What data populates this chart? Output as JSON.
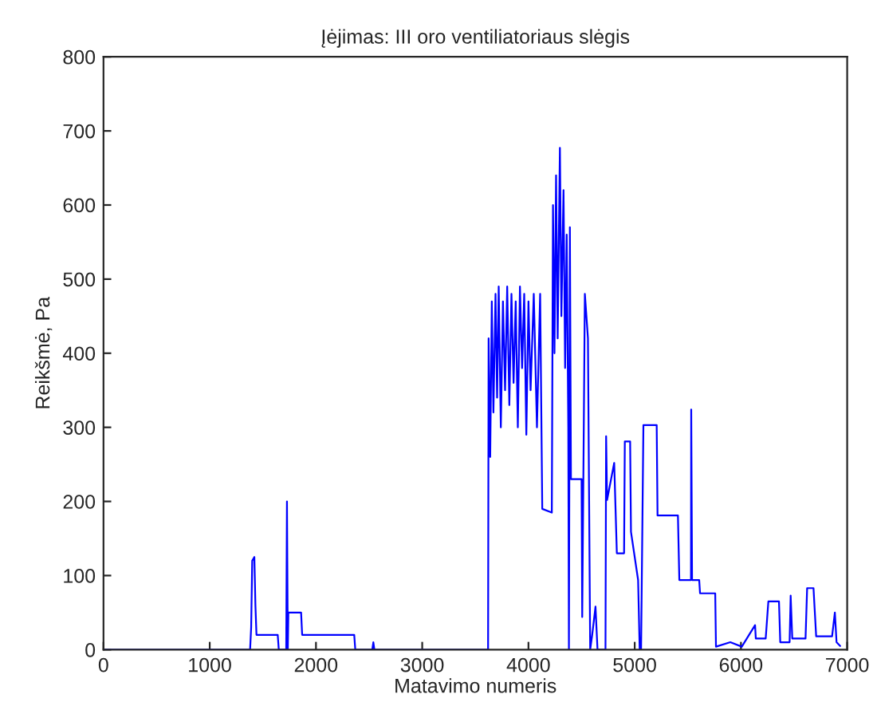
{
  "chart_data": {
    "type": "line",
    "title": "Įėjimas: III oro ventiliatoriaus slėgis",
    "xlabel": "Matavimo numeris",
    "ylabel": "Reikšmė, Pa",
    "xlim": [
      0,
      7000
    ],
    "xticks": [
      0,
      1000,
      2000,
      3000,
      4000,
      5000,
      6000,
      7000
    ],
    "ylim": [
      0,
      800
    ],
    "yticks": [
      0,
      100,
      200,
      300,
      400,
      500,
      600,
      700,
      800
    ],
    "grid": false,
    "legend": false,
    "marker": "none",
    "line_style": "solid",
    "series": [
      {
        "color": "#0000ff",
        "x": [
          0,
          1380,
          1390,
          1400,
          1420,
          1430,
          1440,
          1640,
          1650,
          1720,
          1727,
          1735,
          1740,
          1860,
          1870,
          2360,
          2370,
          2530,
          2540,
          2550,
          3615,
          3620,
          3625,
          3640,
          3655,
          3670,
          3690,
          3705,
          3720,
          3740,
          3760,
          3780,
          3800,
          3820,
          3840,
          3860,
          3880,
          3900,
          3920,
          3940,
          3960,
          3980,
          4000,
          4020,
          4050,
          4080,
          4110,
          4130,
          4220,
          4231,
          4245,
          4260,
          4275,
          4296,
          4310,
          4330,
          4345,
          4360,
          4375,
          4381,
          4390,
          4400,
          4406,
          4500,
          4506,
          4531,
          4560,
          4581,
          4600,
          4631,
          4650,
          4725,
          4731,
          4740,
          4807,
          4832,
          4900,
          4907,
          4957,
          4965,
          5032,
          5047,
          5060,
          5082,
          5207,
          5215,
          5407,
          5420,
          5530,
          5532,
          5540,
          5607,
          5615,
          5758,
          5765,
          5900,
          6008,
          6133,
          6140,
          6233,
          6258,
          6358,
          6370,
          6458,
          6468,
          6483,
          6608,
          6623,
          6683,
          6708,
          6858,
          6884,
          6900,
          6934
        ],
        "values": [
          0,
          0,
          30,
          120,
          125,
          60,
          20,
          20,
          0,
          0,
          200,
          0,
          50,
          50,
          20,
          20,
          0,
          0,
          10,
          0,
          0,
          0,
          420,
          260,
          470,
          320,
          480,
          340,
          490,
          300,
          470,
          350,
          490,
          330,
          480,
          360,
          470,
          300,
          490,
          380,
          480,
          290,
          470,
          350,
          480,
          300,
          480,
          190,
          185,
          600,
          400,
          640,
          420,
          677,
          450,
          620,
          380,
          560,
          300,
          0,
          570,
          230,
          230,
          230,
          44,
          480,
          420,
          0,
          20,
          58,
          0,
          0,
          288,
          202,
          252,
          130,
          130,
          281,
          281,
          159,
          94,
          0,
          0,
          303,
          303,
          181,
          181,
          94,
          94,
          324,
          94,
          94,
          76,
          76,
          4,
          10,
          4,
          33,
          15,
          15,
          65,
          65,
          10,
          10,
          73,
          15,
          15,
          83,
          83,
          18,
          18,
          50,
          10,
          5
        ]
      }
    ]
  }
}
